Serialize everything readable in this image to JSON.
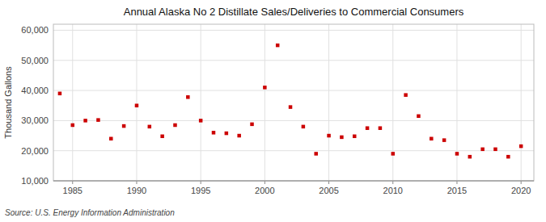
{
  "chart_data": {
    "type": "scatter",
    "title": "Annual Alaska No 2 Distillate Sales/Deliveries to Commercial Consumers",
    "ylabel": "Thousand Gallons",
    "source": "Source: U.S. Energy Information Administration",
    "x": [
      1984,
      1985,
      1986,
      1987,
      1988,
      1989,
      1990,
      1991,
      1992,
      1993,
      1994,
      1995,
      1996,
      1997,
      1998,
      1999,
      2000,
      2001,
      2002,
      2003,
      2004,
      2005,
      2006,
      2007,
      2008,
      2009,
      2010,
      2011,
      2012,
      2013,
      2014,
      2015,
      2016,
      2017,
      2018,
      2019,
      2020
    ],
    "values": [
      39000,
      28500,
      30000,
      30200,
      24000,
      28200,
      35000,
      28000,
      24800,
      28500,
      37800,
      30000,
      26000,
      25800,
      25000,
      28800,
      41000,
      55000,
      34500,
      28000,
      19000,
      25000,
      24500,
      24800,
      27500,
      27500,
      19000,
      38500,
      31500,
      24000,
      23500,
      19000,
      18000,
      20500,
      20500,
      18000,
      21500
    ],
    "color": "#cc0000",
    "marker": "square",
    "xlim": [
      1983.5,
      2021
    ],
    "ylim": [
      10000,
      62000
    ],
    "xticks": [
      1985,
      1990,
      1995,
      2000,
      2005,
      2010,
      2015,
      2020
    ],
    "yticks": [
      {
        "value": 10000,
        "label": "10,000"
      },
      {
        "value": 20000,
        "label": "20,000"
      },
      {
        "value": 30000,
        "label": "30,000"
      },
      {
        "value": 40000,
        "label": "40,000"
      },
      {
        "value": 50000,
        "label": "50,000"
      },
      {
        "value": 60000,
        "label": "60,000"
      }
    ],
    "grid": true
  }
}
